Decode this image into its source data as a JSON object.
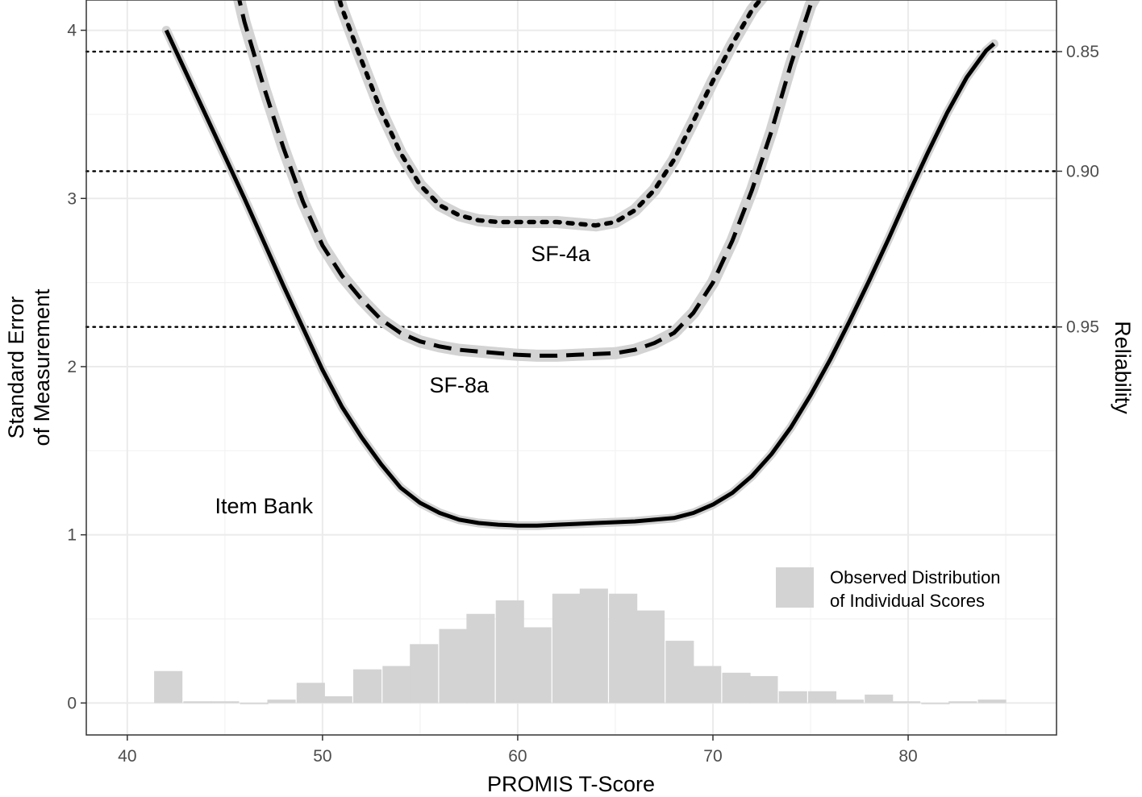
{
  "chart_data": {
    "type": "line",
    "xlabel": "PROMIS T-Score",
    "ylabel_lines": [
      "Standard Error",
      "of Measurement"
    ],
    "y2label": "Reliability",
    "xlim": [
      37.9,
      87.6
    ],
    "ylim": [
      -0.19,
      4.18
    ],
    "x_ticks": [
      40,
      50,
      60,
      70,
      80
    ],
    "y_ticks": [
      0,
      1,
      2,
      3,
      4
    ],
    "reliability_lines": [
      {
        "reliability": 0.85,
        "se": 3.873,
        "label": "0.85"
      },
      {
        "reliability": 0.9,
        "se": 3.162,
        "label": "0.90"
      },
      {
        "reliability": 0.95,
        "se": 2.236,
        "label": "0.95"
      }
    ],
    "grid": true,
    "band_color": "#d3d3d3",
    "line_color": "#000000",
    "series": [
      {
        "name": "Item Bank",
        "style": "solid",
        "x": [
          42,
          43,
          44,
          45,
          46,
          47,
          48,
          49,
          50,
          51,
          52,
          53,
          54,
          55,
          56,
          57,
          58,
          59,
          60,
          61,
          62,
          63,
          64,
          65,
          66,
          67,
          68,
          69,
          70,
          71,
          72,
          73,
          74,
          75,
          76,
          77,
          78,
          79,
          80,
          81,
          82,
          83,
          84,
          84.4
        ],
        "y": [
          4.0,
          3.75,
          3.5,
          3.25,
          3.0,
          2.74,
          2.48,
          2.23,
          1.98,
          1.76,
          1.58,
          1.42,
          1.28,
          1.19,
          1.13,
          1.09,
          1.07,
          1.06,
          1.055,
          1.055,
          1.06,
          1.065,
          1.07,
          1.075,
          1.08,
          1.09,
          1.1,
          1.13,
          1.18,
          1.25,
          1.35,
          1.48,
          1.64,
          1.83,
          2.04,
          2.27,
          2.51,
          2.76,
          3.02,
          3.27,
          3.51,
          3.72,
          3.88,
          3.92
        ]
      },
      {
        "name": "SF-8a",
        "style": "dashed",
        "x": [
          45.6,
          46,
          47,
          48,
          49,
          50,
          51,
          52,
          53,
          54,
          55,
          56,
          57,
          58,
          59,
          60,
          61,
          62,
          63,
          64,
          65,
          66,
          67,
          68,
          69,
          70,
          71,
          72,
          73,
          74,
          75,
          75.5
        ],
        "y": [
          4.25,
          4.05,
          3.66,
          3.3,
          2.98,
          2.72,
          2.54,
          2.4,
          2.28,
          2.2,
          2.15,
          2.12,
          2.1,
          2.09,
          2.08,
          2.07,
          2.065,
          2.065,
          2.07,
          2.075,
          2.08,
          2.1,
          2.14,
          2.2,
          2.32,
          2.5,
          2.75,
          3.05,
          3.4,
          3.8,
          4.15,
          4.25
        ]
      },
      {
        "name": "SF-4a",
        "style": "dotted",
        "x": [
          50.7,
          51,
          52,
          53,
          54,
          55,
          56,
          57,
          58,
          59,
          60,
          61,
          62,
          63,
          64,
          65,
          66,
          67,
          68,
          69,
          70,
          71,
          72,
          72.9
        ],
        "y": [
          4.25,
          4.13,
          3.82,
          3.52,
          3.27,
          3.08,
          2.96,
          2.9,
          2.87,
          2.86,
          2.86,
          2.86,
          2.86,
          2.85,
          2.84,
          2.86,
          2.93,
          3.05,
          3.23,
          3.46,
          3.7,
          3.92,
          4.12,
          4.25
        ]
      }
    ],
    "histogram": {
      "name": "Observed Distribution of Individual Scores",
      "bin_width": 1.45,
      "bins": [
        {
          "x": 42.1,
          "y": 0.19
        },
        {
          "x": 43.6,
          "y": 0.01
        },
        {
          "x": 45.0,
          "y": 0.01
        },
        {
          "x": 46.5,
          "y": 0.0
        },
        {
          "x": 47.9,
          "y": 0.02
        },
        {
          "x": 49.4,
          "y": 0.12
        },
        {
          "x": 50.8,
          "y": 0.04
        },
        {
          "x": 52.3,
          "y": 0.2
        },
        {
          "x": 53.8,
          "y": 0.22
        },
        {
          "x": 55.2,
          "y": 0.35
        },
        {
          "x": 56.7,
          "y": 0.44
        },
        {
          "x": 58.1,
          "y": 0.53
        },
        {
          "x": 59.6,
          "y": 0.61
        },
        {
          "x": 61.0,
          "y": 0.45
        },
        {
          "x": 62.5,
          "y": 0.65
        },
        {
          "x": 63.9,
          "y": 0.68
        },
        {
          "x": 65.4,
          "y": 0.65
        },
        {
          "x": 66.8,
          "y": 0.55
        },
        {
          "x": 68.3,
          "y": 0.37
        },
        {
          "x": 69.7,
          "y": 0.22
        },
        {
          "x": 71.2,
          "y": 0.18
        },
        {
          "x": 72.6,
          "y": 0.16
        },
        {
          "x": 74.1,
          "y": 0.07
        },
        {
          "x": 75.6,
          "y": 0.07
        },
        {
          "x": 77.0,
          "y": 0.02
        },
        {
          "x": 78.5,
          "y": 0.05
        },
        {
          "x": 79.9,
          "y": 0.01
        },
        {
          "x": 81.4,
          "y": 0.0
        },
        {
          "x": 82.8,
          "y": 0.01
        },
        {
          "x": 84.3,
          "y": 0.02
        }
      ]
    },
    "curve_labels": [
      {
        "text": "SF-4a",
        "x": 62.2,
        "y": 2.67
      },
      {
        "text": "SF-8a",
        "x": 57.0,
        "y": 1.89
      },
      {
        "text": "Item Bank",
        "x": 47.0,
        "y": 1.17
      }
    ],
    "legend": {
      "position": "bottom-right",
      "lines": [
        "Observed Distribution",
        "of Individual Scores"
      ]
    }
  }
}
